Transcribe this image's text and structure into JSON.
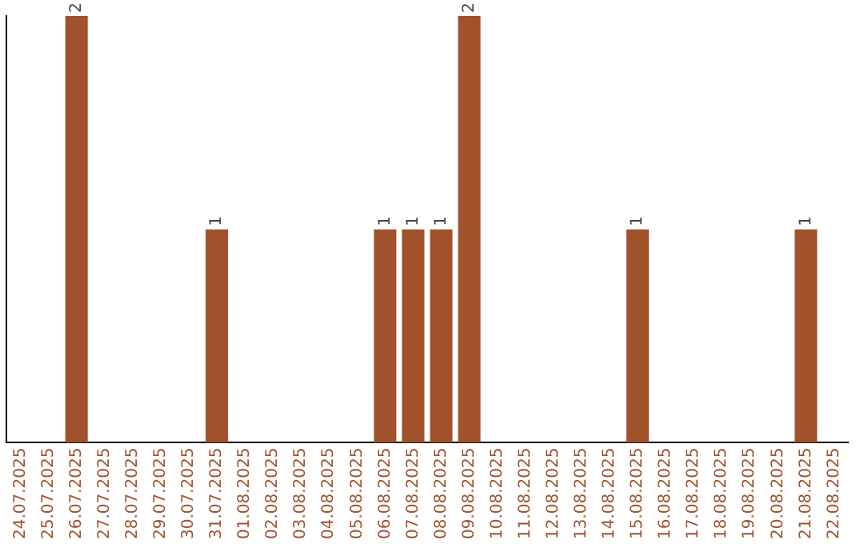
{
  "chart_data": {
    "type": "bar",
    "categories": [
      "24.07.2025",
      "25.07.2025",
      "26.07.2025",
      "27.07.2025",
      "28.07.2025",
      "29.07.2025",
      "30.07.2025",
      "31.07.2025",
      "01.08.2025",
      "02.08.2025",
      "03.08.2025",
      "04.08.2025",
      "05.08.2025",
      "06.08.2025",
      "07.08.2025",
      "08.08.2025",
      "09.08.2025",
      "10.08.2025",
      "11.08.2025",
      "12.08.2025",
      "13.08.2025",
      "14.08.2025",
      "15.08.2025",
      "16.08.2025",
      "17.08.2025",
      "18.08.2025",
      "19.08.2025",
      "20.08.2025",
      "21.08.2025",
      "22.08.2025"
    ],
    "values": [
      0,
      0,
      2,
      0,
      0,
      0,
      0,
      1,
      0,
      0,
      0,
      0,
      0,
      1,
      1,
      1,
      2,
      0,
      0,
      0,
      0,
      0,
      1,
      0,
      0,
      0,
      0,
      0,
      1,
      0
    ],
    "value_labels": [
      null,
      null,
      "2",
      null,
      null,
      null,
      null,
      "1",
      null,
      null,
      null,
      null,
      null,
      "1",
      "1",
      "1",
      "2",
      null,
      null,
      null,
      null,
      null,
      "1",
      null,
      null,
      null,
      null,
      null,
      "1",
      null
    ],
    "color": "#a0522d",
    "ylim": [
      0,
      2
    ],
    "grid": false,
    "tick_labels": "x"
  }
}
